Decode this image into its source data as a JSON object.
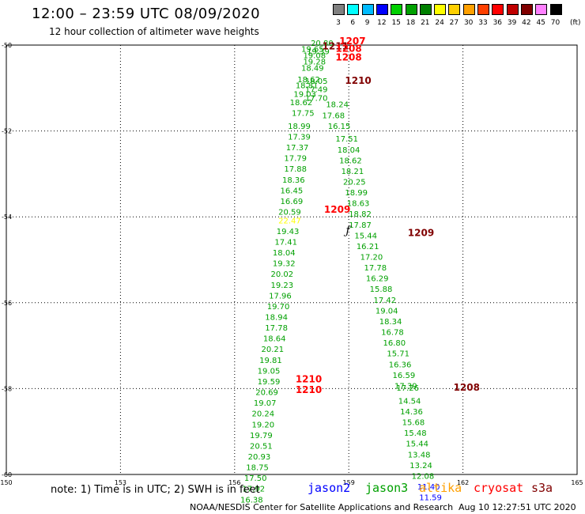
{
  "header": {
    "title": "12:00 – 23:59 UTC 08/09/2020",
    "subtitle": "12 hour collection of altimeter wave heights"
  },
  "legend": {
    "unit": "(ft)",
    "items": [
      {
        "label": "3",
        "color": "#808080"
      },
      {
        "label": "6",
        "color": "#00ffff"
      },
      {
        "label": "9",
        "color": "#00bbff"
      },
      {
        "label": "12",
        "color": "#0000ff"
      },
      {
        "label": "15",
        "color": "#00d000"
      },
      {
        "label": "18",
        "color": "#00a000"
      },
      {
        "label": "21",
        "color": "#008000"
      },
      {
        "label": "24",
        "color": "#ffff00"
      },
      {
        "label": "27",
        "color": "#ffd000"
      },
      {
        "label": "30",
        "color": "#ffa000"
      },
      {
        "label": "33",
        "color": "#ff4000"
      },
      {
        "label": "36",
        "color": "#ff0000"
      },
      {
        "label": "39",
        "color": "#c00000"
      },
      {
        "label": "42",
        "color": "#800000"
      },
      {
        "label": "45",
        "color": "#ff80ff"
      },
      {
        "label": "70",
        "color": "#000000"
      }
    ]
  },
  "note": "note: 1) Time is in UTC; 2) SWH is in feet",
  "satellites": [
    {
      "name": "jason2",
      "color": "#0000ff"
    },
    {
      "name": "jason3",
      "color": "#00a000"
    },
    {
      "name": "altika",
      "color": "#ffa000"
    },
    {
      "name": "cryosat",
      "color": "#ff0000"
    },
    {
      "name": "s3a",
      "color": "#800000"
    }
  ],
  "footer": {
    "credit": "NOAA/NESDIS Center for Satellite Applications and Research",
    "timestamp": "Aug 10 12:27:51 UTC 2020"
  },
  "land_marker": "ƒ",
  "chart_data": {
    "type": "scatter",
    "title": "12:00 – 23:59 UTC 08/09/2020",
    "xlabel": "",
    "ylabel": "",
    "xlim": [
      150,
      165
    ],
    "ylim": [
      -60,
      -50
    ],
    "x_ticks": [
      "150",
      "153",
      "156",
      "159",
      "162",
      "165"
    ],
    "y_ticks": [
      "-50",
      "-52",
      "-54",
      "-56",
      "-58",
      "-60"
    ],
    "grid": true,
    "tracks": [
      {
        "name": "jason3 track A",
        "color": "#00a000",
        "points": [
          {
            "lon": 158.0,
            "lat": -50.02,
            "label": "20.80"
          },
          {
            "lon": 157.75,
            "lat": -50.16,
            "label": "19.65"
          },
          {
            "lon": 157.9,
            "lat": -50.21,
            "label": "19.39"
          },
          {
            "lon": 157.8,
            "lat": -50.3,
            "label": "19.08"
          },
          {
            "lon": 157.8,
            "lat": -50.45,
            "label": "19.28"
          },
          {
            "lon": 157.75,
            "lat": -50.6,
            "label": "18.49"
          },
          {
            "lon": 157.65,
            "lat": -50.87,
            "label": "18.62"
          },
          {
            "lon": 157.85,
            "lat": -50.9,
            "label": "18.05"
          },
          {
            "lon": 157.6,
            "lat": -51.0,
            "label": "18.81"
          },
          {
            "lon": 157.85,
            "lat": -51.1,
            "label": "17.49"
          },
          {
            "lon": 157.55,
            "lat": -51.21,
            "label": "19.03"
          },
          {
            "lon": 157.85,
            "lat": -51.3,
            "label": "17.70"
          },
          {
            "lon": 157.45,
            "lat": -51.4,
            "label": "18.62"
          },
          {
            "lon": 157.5,
            "lat": -51.65,
            "label": "17.75"
          },
          {
            "lon": 157.4,
            "lat": -51.95,
            "label": "18.99"
          },
          {
            "lon": 157.4,
            "lat": -52.2,
            "label": "17.39"
          },
          {
            "lon": 157.35,
            "lat": -52.45,
            "label": "17.37"
          },
          {
            "lon": 157.3,
            "lat": -52.7,
            "label": "17.79"
          },
          {
            "lon": 157.3,
            "lat": -52.95,
            "label": "17.88"
          },
          {
            "lon": 157.25,
            "lat": -53.2,
            "label": "18.36"
          },
          {
            "lon": 157.2,
            "lat": -53.45,
            "label": "16.45"
          },
          {
            "lon": 157.2,
            "lat": -53.7,
            "label": "16.69"
          },
          {
            "lon": 157.15,
            "lat": -53.95,
            "label": "20.59"
          },
          {
            "lon": 157.1,
            "lat": -54.4,
            "label": "19.43"
          },
          {
            "lon": 157.05,
            "lat": -54.65,
            "label": "17.41"
          },
          {
            "lon": 157.0,
            "lat": -54.9,
            "label": "18.04"
          },
          {
            "lon": 157.0,
            "lat": -55.15,
            "label": "19.32"
          },
          {
            "lon": 156.95,
            "lat": -55.4,
            "label": "20.02"
          },
          {
            "lon": 156.95,
            "lat": -55.65,
            "label": "19.23"
          },
          {
            "lon": 156.9,
            "lat": -55.9,
            "label": "17.96"
          },
          {
            "lon": 156.85,
            "lat": -56.15,
            "label": "19.70"
          },
          {
            "lon": 156.8,
            "lat": -56.4,
            "label": "18.94"
          },
          {
            "lon": 156.8,
            "lat": -56.65,
            "label": "17.78"
          },
          {
            "lon": 156.75,
            "lat": -56.9,
            "label": "18.64"
          },
          {
            "lon": 156.7,
            "lat": -57.15,
            "label": "20.21"
          },
          {
            "lon": 156.65,
            "lat": -57.4,
            "label": "19.81"
          },
          {
            "lon": 156.6,
            "lat": -57.65,
            "label": "19.05"
          },
          {
            "lon": 156.6,
            "lat": -57.9,
            "label": "19.59"
          },
          {
            "lon": 156.55,
            "lat": -58.15,
            "label": "20.69"
          },
          {
            "lon": 156.5,
            "lat": -58.4,
            "label": "19.07"
          },
          {
            "lon": 156.45,
            "lat": -58.65,
            "label": "20.24"
          },
          {
            "lon": 156.45,
            "lat": -58.9,
            "label": "19.20"
          },
          {
            "lon": 156.4,
            "lat": -59.15,
            "label": "19.79"
          },
          {
            "lon": 156.4,
            "lat": -59.4,
            "label": "20.51"
          },
          {
            "lon": 156.35,
            "lat": -59.65,
            "label": "20.93"
          },
          {
            "lon": 156.3,
            "lat": -59.9,
            "label": "18.75"
          },
          {
            "lon": 156.25,
            "lat": -60.15,
            "label": "17.50"
          },
          {
            "lon": 156.2,
            "lat": -60.4,
            "label": "17.92"
          },
          {
            "lon": 156.15,
            "lat": -60.65,
            "label": "16.38"
          }
        ]
      },
      {
        "name": "altika point",
        "color": "#ffff00",
        "points": [
          {
            "lon": 157.15,
            "lat": -54.15,
            "label": "22.47"
          }
        ]
      },
      {
        "name": "jason3 track B",
        "color": "#00a000",
        "points": [
          {
            "lon": 158.4,
            "lat": -51.45,
            "label": "18.24"
          },
          {
            "lon": 158.3,
            "lat": -51.7,
            "label": "17.68"
          },
          {
            "lon": 158.45,
            "lat": -51.95,
            "label": "16.15"
          },
          {
            "lon": 158.65,
            "lat": -52.25,
            "label": "17.51"
          },
          {
            "lon": 158.7,
            "lat": -52.5,
            "label": "18.04"
          },
          {
            "lon": 158.75,
            "lat": -52.75,
            "label": "18.62"
          },
          {
            "lon": 158.8,
            "lat": -53.0,
            "label": "18.21"
          },
          {
            "lon": 158.85,
            "lat": -53.25,
            "label": "20.25"
          },
          {
            "lon": 158.9,
            "lat": -53.5,
            "label": "18.99"
          },
          {
            "lon": 158.95,
            "lat": -53.75,
            "label": "18.63"
          },
          {
            "lon": 159.0,
            "lat": -54.0,
            "label": "18.82"
          },
          {
            "lon": 159.0,
            "lat": -54.25,
            "label": "17.87"
          },
          {
            "lon": 159.15,
            "lat": -54.5,
            "label": "15.44"
          },
          {
            "lon": 159.2,
            "lat": -54.75,
            "label": "16.21"
          },
          {
            "lon": 159.3,
            "lat": -55.0,
            "label": "17.20"
          },
          {
            "lon": 159.4,
            "lat": -55.25,
            "label": "17.78"
          },
          {
            "lon": 159.45,
            "lat": -55.5,
            "label": "16.29"
          },
          {
            "lon": 159.55,
            "lat": -55.75,
            "label": "15.88"
          },
          {
            "lon": 159.65,
            "lat": -56.0,
            "label": "17.42"
          },
          {
            "lon": 159.7,
            "lat": -56.25,
            "label": "19.04"
          },
          {
            "lon": 159.8,
            "lat": -56.5,
            "label": "18.34"
          },
          {
            "lon": 159.85,
            "lat": -56.75,
            "label": "16.78"
          },
          {
            "lon": 159.9,
            "lat": -57.0,
            "label": "16.80"
          },
          {
            "lon": 160.0,
            "lat": -57.25,
            "label": "15.71"
          },
          {
            "lon": 160.05,
            "lat": -57.5,
            "label": "16.36"
          },
          {
            "lon": 160.15,
            "lat": -57.75,
            "label": "16.59"
          },
          {
            "lon": 160.2,
            "lat": -58.0,
            "label": "17.39"
          },
          {
            "lon": 160.25,
            "lat": -58.05,
            "label": "17.26"
          },
          {
            "lon": 160.3,
            "lat": -58.35,
            "label": "14.54"
          },
          {
            "lon": 160.35,
            "lat": -58.6,
            "label": "14.36"
          },
          {
            "lon": 160.4,
            "lat": -58.85,
            "label": "15.68"
          },
          {
            "lon": 160.45,
            "lat": -59.1,
            "label": "15.48"
          },
          {
            "lon": 160.5,
            "lat": -59.35,
            "label": "15.44"
          },
          {
            "lon": 160.55,
            "lat": -59.6,
            "label": "13.48"
          },
          {
            "lon": 160.6,
            "lat": -59.85,
            "label": "13.24"
          },
          {
            "lon": 160.65,
            "lat": -60.1,
            "label": "12.08"
          }
        ]
      },
      {
        "name": "jason2 points",
        "color": "#0000ff",
        "points": [
          {
            "lon": 160.8,
            "lat": -60.35,
            "label": "11.40"
          },
          {
            "lon": 160.85,
            "lat": -60.6,
            "label": "11.59"
          }
        ]
      }
    ],
    "time_labels": [
      {
        "lon": 158.75,
        "lat": -49.98,
        "label": "1207",
        "color": "#ff0000"
      },
      {
        "lon": 158.3,
        "lat": -50.1,
        "label": "1211",
        "color": "#800000"
      },
      {
        "lon": 158.65,
        "lat": -50.16,
        "label": "1208",
        "color": "#ff0000"
      },
      {
        "lon": 158.65,
        "lat": -50.36,
        "label": "1208",
        "color": "#ff0000"
      },
      {
        "lon": 158.9,
        "lat": -50.9,
        "label": "1210",
        "color": "#800000"
      },
      {
        "lon": 158.35,
        "lat": -53.9,
        "label": "1209",
        "color": "#ff0000"
      },
      {
        "lon": 160.55,
        "lat": -54.45,
        "label": "1209",
        "color": "#800000"
      },
      {
        "lon": 157.6,
        "lat": -57.85,
        "label": "1210",
        "color": "#ff0000"
      },
      {
        "lon": 157.6,
        "lat": -58.1,
        "label": "1210",
        "color": "#ff0000"
      },
      {
        "lon": 161.75,
        "lat": -58.05,
        "label": "1208",
        "color": "#800000"
      }
    ]
  }
}
